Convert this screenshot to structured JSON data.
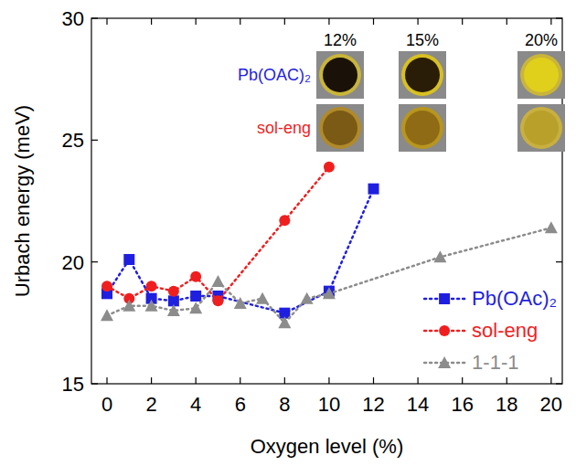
{
  "chart_data": {
    "type": "line",
    "x_label": "Oxygen level (%)",
    "y_label": "Urbach energy (meV)",
    "xlim": [
      -0.7,
      20.5
    ],
    "xticks": [
      0,
      2,
      4,
      6,
      8,
      10,
      12,
      14,
      16,
      18,
      20
    ],
    "ylim": [
      15,
      30
    ],
    "yticks": [
      15,
      20,
      25,
      30
    ],
    "grid": false,
    "legend": "lower right",
    "annotations": {
      "columns": [
        "12%",
        "15%",
        "20%"
      ],
      "rows": [
        "Pb(OAC)₂",
        "sol-eng"
      ]
    },
    "series": [
      {
        "name": "Pb(OAc)₂",
        "color": "#1f1fe0",
        "marker": "square",
        "line_style": "dotted",
        "x": [
          0,
          1,
          2,
          3,
          4,
          5,
          8,
          10,
          12
        ],
        "values": [
          18.7,
          20.1,
          18.5,
          18.4,
          18.6,
          18.6,
          17.9,
          18.8,
          23.0
        ]
      },
      {
        "name": "sol-eng",
        "color": "#f01f1f",
        "marker": "circle",
        "line_style": "dotted",
        "x": [
          0,
          1,
          2,
          3,
          4,
          5,
          8,
          10
        ],
        "values": [
          19.0,
          18.5,
          19.0,
          18.8,
          19.4,
          18.4,
          21.7,
          23.9
        ]
      },
      {
        "name": "1-1-1",
        "color": "#8c8c8c",
        "marker": "triangle",
        "line_style": "dotted",
        "x": [
          0,
          1,
          2,
          3,
          4,
          5,
          6,
          7,
          8,
          9,
          10,
          15,
          20
        ],
        "values": [
          17.8,
          18.2,
          18.2,
          18.0,
          18.1,
          19.2,
          18.3,
          18.5,
          17.5,
          18.5,
          18.7,
          20.2,
          21.4
        ]
      }
    ]
  }
}
